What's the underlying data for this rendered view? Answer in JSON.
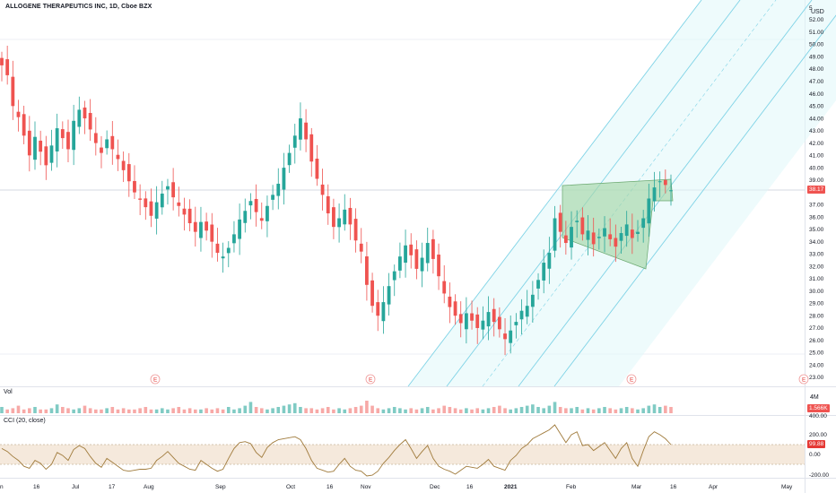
{
  "header": {
    "symbol_title": "ALLOGENE THERAPEUTICS INC, 1D, Cboe BZX",
    "currency": "USD"
  },
  "price_axis": {
    "labels": [
      "52.00",
      "51.00",
      "50.00",
      "49.00",
      "48.00",
      "47.00",
      "46.00",
      "45.00",
      "44.00",
      "43.00",
      "42.00",
      "41.00",
      "40.00",
      "39.00",
      "37.00",
      "36.00",
      "35.00",
      "34.00",
      "33.00",
      "32.00",
      "31.00",
      "30.00",
      "29.00",
      "28.00",
      "27.00",
      "26.00",
      "25.00",
      "24.00",
      "23.00"
    ],
    "top_partial": "5",
    "last_price": "38.17",
    "last_price_color": "#ef5350"
  },
  "volume": {
    "label": "Vol",
    "axis_label": "4M",
    "last_value": "1.566K",
    "last_color": "#ef5350"
  },
  "cci": {
    "label": "CCI (20, close)",
    "axis_labels": [
      "400.00",
      "200.00",
      "0.00",
      "-200.00"
    ],
    "last_value": "99.88",
    "last_color": "#e53935"
  },
  "time_axis": {
    "labels": [
      "n",
      "16",
      "Jul",
      "17",
      "Aug",
      "Sep",
      "Oct",
      "16",
      "Nov",
      "Dec",
      "16",
      "2021",
      "Feb",
      "Mar",
      "16",
      "Apr",
      "May"
    ]
  },
  "earnings_markers": [
    "E",
    "E",
    "E",
    "E"
  ],
  "colors": {
    "up": "#26a69a",
    "down": "#ef5350",
    "channel_line": "#7fd3e6",
    "channel_fill": "#e0f7fa",
    "box_fill": "#a5d6a7",
    "cci_line": "#a07b3c",
    "cci_band": "#f5e9dc"
  },
  "chart_data": {
    "type": "candlestick",
    "price_range": [
      22.5,
      53.0
    ],
    "close_series": [
      48.3,
      47.5,
      45.0,
      44.1,
      42.6,
      41.0,
      42.5,
      41.3,
      40.2,
      41.8,
      43.2,
      42.4,
      41.5,
      43.8,
      44.7,
      44.0,
      43.1,
      42.0,
      41.2,
      42.3,
      41.5,
      40.7,
      39.8,
      38.9,
      38.0,
      37.4,
      36.8,
      36.1,
      37.2,
      37.9,
      38.5,
      37.6,
      36.9,
      36.2,
      35.5,
      34.8,
      35.6,
      34.9,
      34.0,
      33.1,
      32.8,
      33.5,
      34.6,
      35.8,
      36.5,
      37.3,
      36.4,
      35.7,
      36.9,
      37.8,
      38.7,
      40.0,
      41.2,
      42.6,
      44.0,
      42.3,
      40.5,
      39.1,
      37.8,
      36.3,
      35.2,
      35.9,
      36.6,
      35.4,
      34.1,
      33.2,
      30.5,
      28.8,
      28.0,
      29.1,
      30.4,
      31.6,
      32.8,
      33.7,
      32.9,
      31.8,
      32.7,
      33.9,
      32.6,
      31.2,
      29.8,
      28.7,
      28.0,
      27.4,
      28.2,
      27.6,
      27.0,
      27.6,
      28.3,
      27.5,
      26.9,
      26.1,
      26.8,
      27.5,
      28.4,
      28.8,
      29.7,
      30.9,
      32.3,
      33.1,
      35.9,
      34.8,
      33.9,
      35.2,
      35.7,
      34.6,
      34.9,
      33.8,
      34.4,
      35.1,
      34.2,
      33.6,
      34.7,
      35.4,
      34.3,
      34.8,
      35.9,
      37.5,
      38.4,
      38.9,
      38.6,
      38.17
    ],
    "volume_relative": [
      0.5,
      0.3,
      0.4,
      0.6,
      0.3,
      0.4,
      0.5,
      0.3,
      0.3,
      0.4,
      0.7,
      0.5,
      0.4,
      0.3,
      0.4,
      0.6,
      0.4,
      0.3,
      0.3,
      0.4,
      0.5,
      0.3,
      0.4,
      0.3,
      0.3,
      0.4,
      0.5,
      0.3,
      0.3,
      0.4,
      0.3,
      0.4,
      0.5,
      0.3,
      0.4,
      0.3,
      0.3,
      0.4,
      0.3,
      0.4,
      0.3,
      0.5,
      0.3,
      0.4,
      0.6,
      0.9,
      0.5,
      0.4,
      0.3,
      0.4,
      0.5,
      0.6,
      0.7,
      0.8,
      0.5,
      0.4,
      0.4,
      0.3,
      0.4,
      0.5,
      0.3,
      0.4,
      0.3,
      0.4,
      0.5,
      0.6,
      1.0,
      0.6,
      0.4,
      0.3,
      0.4,
      0.5,
      0.4,
      0.3,
      0.4,
      0.3,
      0.4,
      0.5,
      0.3,
      0.4,
      0.6,
      0.5,
      0.4,
      0.3,
      0.4,
      0.3,
      0.4,
      0.3,
      0.4,
      0.5,
      0.6,
      0.4,
      0.3,
      0.4,
      0.5,
      0.6,
      0.7,
      0.5,
      0.4,
      0.6,
      0.9,
      0.5,
      0.4,
      0.4,
      0.5,
      0.3,
      0.4,
      0.3,
      0.4,
      0.5,
      0.4,
      0.3,
      0.4,
      0.5,
      0.4,
      0.3,
      0.4,
      0.6,
      0.7,
      0.5,
      0.6,
      0.5
    ],
    "cci_range": [
      -250,
      420
    ],
    "cci_series": [
      60,
      30,
      -20,
      -60,
      -120,
      -140,
      -60,
      -90,
      -150,
      -100,
      20,
      -10,
      -60,
      50,
      90,
      60,
      -20,
      -90,
      -130,
      -40,
      -80,
      -120,
      -160,
      -170,
      -160,
      -150,
      -150,
      -140,
      -60,
      -20,
      30,
      -30,
      -90,
      -120,
      -150,
      -160,
      -60,
      -100,
      -140,
      -170,
      -150,
      -40,
      60,
      120,
      130,
      110,
      20,
      -30,
      70,
      120,
      150,
      160,
      170,
      180,
      150,
      60,
      -60,
      -140,
      -160,
      -180,
      -170,
      -100,
      -40,
      -120,
      -160,
      -170,
      -240,
      -210,
      -170,
      -90,
      -30,
      40,
      100,
      150,
      60,
      -40,
      30,
      90,
      -40,
      -120,
      -150,
      -170,
      -200,
      -160,
      -120,
      -130,
      -140,
      -100,
      -50,
      -120,
      -140,
      -160,
      -60,
      -10,
      60,
      100,
      160,
      190,
      220,
      250,
      300,
      210,
      120,
      200,
      230,
      90,
      100,
      40,
      80,
      120,
      40,
      -40,
      60,
      120,
      -40,
      -120,
      40,
      180,
      230,
      200,
      160,
      99.88
    ],
    "channel": {
      "description": "ascending regression channel (Pitchfork-style)",
      "lines": 5
    }
  }
}
